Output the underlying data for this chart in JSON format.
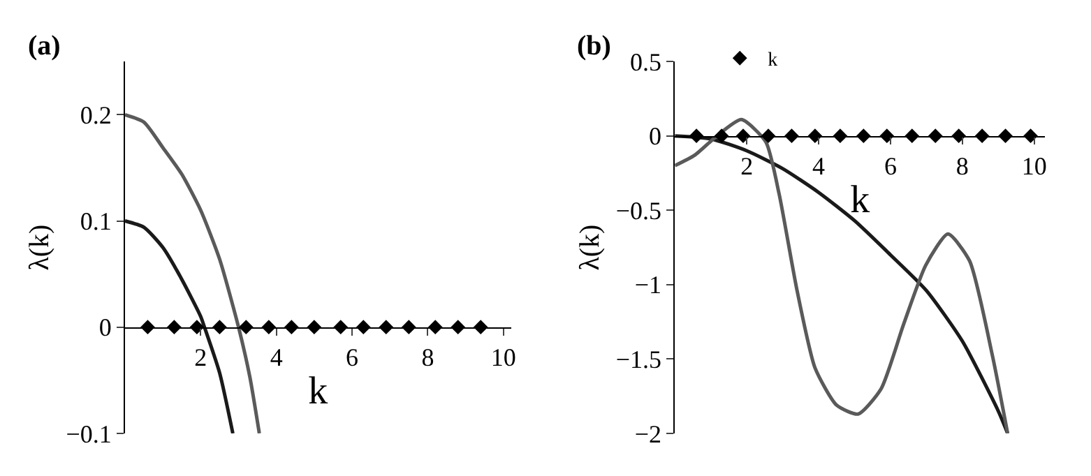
{
  "chart_data": [
    {
      "type": "line",
      "title": "(a)",
      "xlabel": "k",
      "ylabel": "λ(k)",
      "xlim": [
        0,
        10.2
      ],
      "ylim": [
        -0.1,
        0.25
      ],
      "xticks": [
        2,
        4,
        6,
        8,
        10
      ],
      "yticks": [
        {
          "value": -0.1,
          "label": "−0.1"
        },
        0,
        0.1,
        0.2
      ],
      "series": [
        {
          "color": "#5a5a5a",
          "x": [
            0,
            0.5,
            1,
            1.5,
            2,
            2.5,
            3,
            3.3,
            3.55
          ],
          "values": [
            0.2,
            0.193,
            0.169,
            0.144,
            0.11,
            0.064,
            0,
            -0.047,
            -0.1
          ]
        },
        {
          "color": "#1a1a1a",
          "x": [
            0,
            0.5,
            1,
            1.5,
            2,
            2.1,
            2.5,
            2.85
          ],
          "values": [
            0.1,
            0.094,
            0.075,
            0.045,
            0.01,
            0,
            -0.043,
            -0.1
          ]
        },
        {
          "type": "scatter",
          "marker": "diamond",
          "color": "#000000",
          "x": [
            0.6,
            1.3,
            1.9,
            2.5,
            3.2,
            3.8,
            4.4,
            5.0,
            5.7,
            6.3,
            6.9,
            7.5,
            8.2,
            8.8,
            9.4
          ],
          "values": [
            0,
            0,
            0,
            0,
            0,
            0,
            0,
            0,
            0,
            0,
            0,
            0,
            0,
            0,
            0
          ]
        }
      ]
    },
    {
      "type": "line",
      "title": "(b)",
      "xlabel": "k",
      "ylabel": "λ(k)",
      "xlim": [
        0,
        10.3
      ],
      "ylim": [
        -2,
        0.5
      ],
      "xticks": [
        2,
        4,
        6,
        8,
        10
      ],
      "yticks": [
        0.5,
        0,
        {
          "value": -0.5,
          "label": "−0.5"
        },
        {
          "value": -1,
          "label": "−1"
        },
        {
          "value": -1.5,
          "label": "−1.5"
        },
        {
          "value": -2,
          "label": "−2"
        }
      ],
      "legend": "top left",
      "series": [
        {
          "color": "#1a1a1a",
          "x": [
            0,
            1,
            2,
            3,
            4,
            5,
            6,
            7,
            8,
            9,
            9.26
          ],
          "values": [
            0,
            -0.02,
            -0.1,
            -0.22,
            -0.38,
            -0.57,
            -0.8,
            -1.04,
            -1.38,
            -1.85,
            -2
          ]
        },
        {
          "color": "#5a5a5a",
          "x": [
            0,
            0.55,
            1.17,
            1.85,
            2.53,
            2.9,
            3.4,
            3.9,
            4.5,
            5.1,
            5.74,
            6.36,
            6.98,
            7.6,
            8.2,
            8.83,
            9.26
          ],
          "values": [
            -0.2,
            -0.13,
            0,
            0.11,
            -0.04,
            -0.39,
            -1.04,
            -1.56,
            -1.81,
            -1.87,
            -1.7,
            -1.27,
            -0.87,
            -0.66,
            -0.84,
            -1.47,
            -2
          ]
        },
        {
          "type": "scatter",
          "marker": "diamond",
          "name": "k",
          "color": "#000000",
          "x": [
            0.6,
            1.3,
            1.9,
            2.6,
            3.25,
            3.9,
            4.6,
            5.25,
            5.9,
            6.6,
            7.25,
            7.9,
            8.55,
            9.2,
            9.9
          ],
          "values": [
            0,
            0,
            0,
            0,
            0,
            0,
            0,
            0,
            0,
            0,
            0,
            0,
            0,
            0,
            0
          ]
        }
      ]
    }
  ]
}
